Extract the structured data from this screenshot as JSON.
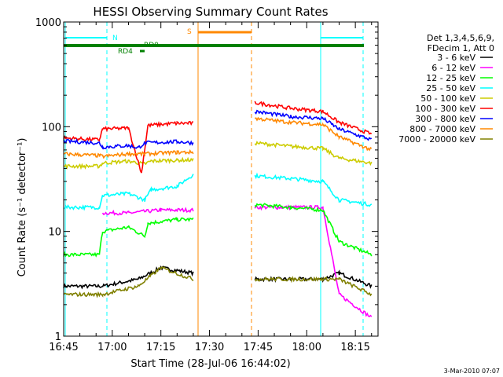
{
  "chart_data": {
    "type": "line",
    "title": "HESSI Observing Summary Count Rates",
    "xlabel": "Start Time (28-Jul-06 16:44:02)",
    "ylabel": "Count Rate (s⁻¹ detector⁻¹)",
    "xlim": [
      "16:45",
      "18:22"
    ],
    "ylim": [
      1,
      1000
    ],
    "y_scale": "log",
    "x_ticks": [
      "16:45",
      "17:00",
      "17:15",
      "17:30",
      "17:45",
      "18:00",
      "18:15"
    ],
    "y_ticks": [
      "1",
      "10",
      "100",
      "1000"
    ],
    "footer_date": "3-Mar-2010 07:07",
    "legend_header": [
      "Det 1,3,4,5,6,9,",
      "FDecim 1, Att 0"
    ],
    "series": [
      {
        "name": "3 - 6 keV",
        "color": "#000000",
        "points": [
          [
            "16:45",
            3.0
          ],
          [
            "16:57",
            3.0
          ],
          [
            "17:08",
            3.5
          ],
          [
            "17:15",
            4.5
          ],
          [
            "17:25",
            4.0
          ],
          [
            "17:44",
            3.5
          ],
          [
            "17:55",
            3.5
          ],
          [
            "18:05",
            3.5
          ],
          [
            "18:10",
            4.0
          ],
          [
            "18:20",
            3.0
          ]
        ]
      },
      {
        "name": "6 - 12 keV",
        "color": "#ff00ff",
        "points": [
          [
            "16:57",
            15
          ],
          [
            "17:05",
            15
          ],
          [
            "17:15",
            16
          ],
          [
            "17:25",
            16
          ],
          [
            "17:44",
            17
          ],
          [
            "17:55",
            17
          ],
          [
            "18:05",
            17
          ],
          [
            "18:10",
            2.5
          ],
          [
            "18:20",
            1.5
          ]
        ]
      },
      {
        "name": "12 - 25 keV",
        "color": "#00ff00",
        "points": [
          [
            "16:45",
            6
          ],
          [
            "16:56",
            6
          ],
          [
            "16:57",
            10
          ],
          [
            "17:05",
            11
          ],
          [
            "17:10",
            9
          ],
          [
            "17:11",
            12
          ],
          [
            "17:20",
            13
          ],
          [
            "17:25",
            13
          ],
          [
            "17:44",
            18
          ],
          [
            "17:55",
            17
          ],
          [
            "18:05",
            16
          ],
          [
            "18:10",
            8
          ],
          [
            "18:20",
            6
          ]
        ]
      },
      {
        "name": "25 - 50 keV",
        "color": "#00ffff",
        "points": [
          [
            "16:45",
            17
          ],
          [
            "16:56",
            17
          ],
          [
            "16:57",
            22
          ],
          [
            "17:05",
            23
          ],
          [
            "17:10",
            20
          ],
          [
            "17:12",
            25
          ],
          [
            "17:20",
            27
          ],
          [
            "17:25",
            35
          ],
          [
            "17:44",
            34
          ],
          [
            "17:55",
            32
          ],
          [
            "18:05",
            30
          ],
          [
            "18:10",
            20
          ],
          [
            "18:20",
            18
          ]
        ]
      },
      {
        "name": "50 - 100 keV",
        "color": "#cccc00",
        "points": [
          [
            "16:45",
            42
          ],
          [
            "16:56",
            42
          ],
          [
            "16:57",
            45
          ],
          [
            "17:05",
            47
          ],
          [
            "17:10",
            44
          ],
          [
            "17:12",
            47
          ],
          [
            "17:20",
            48
          ],
          [
            "17:25",
            48
          ],
          [
            "17:44",
            70
          ],
          [
            "17:55",
            65
          ],
          [
            "18:05",
            62
          ],
          [
            "18:10",
            50
          ],
          [
            "18:20",
            45
          ]
        ]
      },
      {
        "name": "100 - 300 keV",
        "color": "#ff0000",
        "points": [
          [
            "16:45",
            78
          ],
          [
            "16:56",
            75
          ],
          [
            "16:57",
            95
          ],
          [
            "17:05",
            97
          ],
          [
            "17:09",
            36
          ],
          [
            "17:11",
            103
          ],
          [
            "17:20",
            108
          ],
          [
            "17:25",
            108
          ],
          [
            "17:44",
            170
          ],
          [
            "17:55",
            150
          ],
          [
            "18:05",
            140
          ],
          [
            "18:10",
            110
          ],
          [
            "18:20",
            85
          ]
        ]
      },
      {
        "name": "300 - 800 keV",
        "color": "#0000ff",
        "points": [
          [
            "16:45",
            73
          ],
          [
            "16:56",
            70
          ],
          [
            "16:57",
            64
          ],
          [
            "17:05",
            66
          ],
          [
            "17:08",
            63
          ],
          [
            "17:10",
            70
          ],
          [
            "17:20",
            72
          ],
          [
            "17:25",
            70
          ],
          [
            "17:44",
            140
          ],
          [
            "17:55",
            125
          ],
          [
            "18:05",
            120
          ],
          [
            "18:10",
            95
          ],
          [
            "18:20",
            75
          ]
        ]
      },
      {
        "name": "800 - 7000 keV",
        "color": "#ff8800",
        "points": [
          [
            "16:45",
            55
          ],
          [
            "16:56",
            53
          ],
          [
            "16:57",
            52
          ],
          [
            "17:05",
            55
          ],
          [
            "17:10",
            55
          ],
          [
            "17:20",
            57
          ],
          [
            "17:25",
            57
          ],
          [
            "17:44",
            120
          ],
          [
            "17:55",
            110
          ],
          [
            "18:05",
            105
          ],
          [
            "18:10",
            80
          ],
          [
            "18:20",
            60
          ]
        ]
      },
      {
        "name": "7000 - 20000 keV",
        "color": "#808000",
        "points": [
          [
            "16:45",
            2.5
          ],
          [
            "16:57",
            2.5
          ],
          [
            "17:08",
            3.0
          ],
          [
            "17:15",
            4.5
          ],
          [
            "17:25",
            3.5
          ],
          [
            "17:44",
            3.5
          ],
          [
            "17:55",
            3.5
          ],
          [
            "18:05",
            3.5
          ],
          [
            "18:10",
            3.5
          ],
          [
            "18:20",
            2.5
          ]
        ]
      }
    ],
    "annotations": [
      {
        "label": "N",
        "color": "#00ffff"
      },
      {
        "label": "S",
        "color": "#ff8800"
      },
      {
        "label": "RD0",
        "color": "#008000"
      },
      {
        "label": "RD4",
        "color": "#008000"
      }
    ]
  }
}
